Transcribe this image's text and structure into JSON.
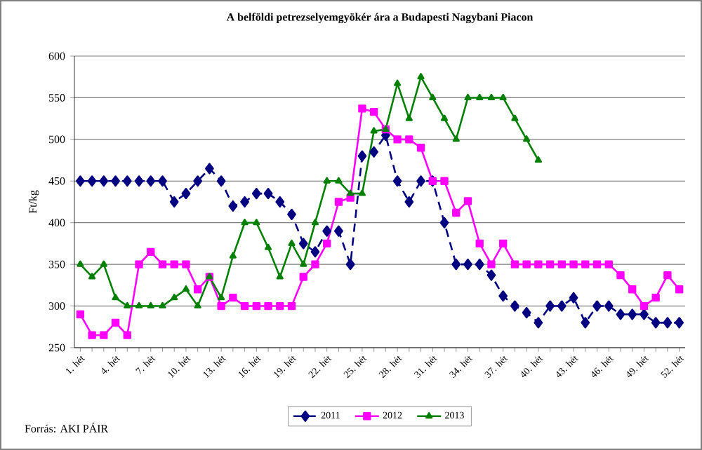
{
  "chart_data": {
    "type": "line",
    "title": "A belföldi petrezselyemgyökér ára a Budapesti Nagybani Piacon",
    "ylabel": "Ft/kg",
    "categories": [
      "1. hét",
      null,
      null,
      "4. hét",
      null,
      null,
      "7. hét",
      null,
      null,
      "10. hét",
      null,
      null,
      "13. hét",
      null,
      null,
      "16. hét",
      null,
      null,
      "19. hét",
      null,
      null,
      "22. hét",
      null,
      null,
      "25. hét",
      null,
      null,
      "28. hét",
      null,
      null,
      "31. hét",
      null,
      null,
      "34. hét",
      null,
      null,
      "37. hét",
      null,
      null,
      "40. hét",
      null,
      null,
      "43. hét",
      null,
      null,
      "46. hét",
      null,
      null,
      "49. hét",
      null,
      null,
      "52. hét"
    ],
    "series": [
      {
        "name": "2011",
        "color": "#000080",
        "marker": "diamond",
        "line_style": "dashed",
        "values": [
          450,
          450,
          450,
          450,
          450,
          450,
          450,
          450,
          425,
          435,
          450,
          465,
          450,
          420,
          425,
          435,
          435,
          425,
          410,
          375,
          365,
          390,
          390,
          350,
          480,
          485,
          505,
          450,
          425,
          450,
          450,
          400,
          350,
          350,
          350,
          337,
          312,
          300,
          292,
          280,
          300,
          300,
          310,
          280,
          300,
          300,
          290,
          290,
          290,
          280,
          280,
          280
        ]
      },
      {
        "name": "2012",
        "color": "#ff00ff",
        "marker": "square",
        "line_style": "solid",
        "values": [
          290,
          265,
          265,
          280,
          265,
          350,
          365,
          350,
          350,
          350,
          320,
          335,
          300,
          310,
          300,
          300,
          300,
          300,
          300,
          335,
          350,
          375,
          425,
          430,
          537,
          533,
          512,
          500,
          500,
          490,
          450,
          450,
          412,
          426,
          375,
          350,
          375,
          350,
          350,
          350,
          350,
          350,
          350,
          350,
          350,
          350,
          337,
          320,
          300,
          310,
          337,
          320
        ]
      },
      {
        "name": "2013",
        "color": "#008000",
        "marker": "triangle",
        "line_style": "solid",
        "values": [
          350,
          335,
          350,
          310,
          300,
          300,
          300,
          300,
          310,
          320,
          300,
          335,
          310,
          360,
          400,
          400,
          370,
          335,
          375,
          350,
          400,
          450,
          450,
          435,
          435,
          510,
          512,
          567,
          525,
          575,
          550,
          525,
          500,
          550,
          550,
          550,
          550,
          525,
          500,
          475,
          null,
          null,
          null,
          null,
          null,
          null,
          null,
          null,
          null,
          null,
          null,
          null
        ]
      }
    ],
    "ylim": [
      250,
      600
    ],
    "yticks": [
      250,
      300,
      350,
      400,
      450,
      500,
      550,
      600
    ],
    "grid": "y",
    "legend": "bottom",
    "annotations": [
      "Forrás: AKI PÁIR"
    ]
  }
}
